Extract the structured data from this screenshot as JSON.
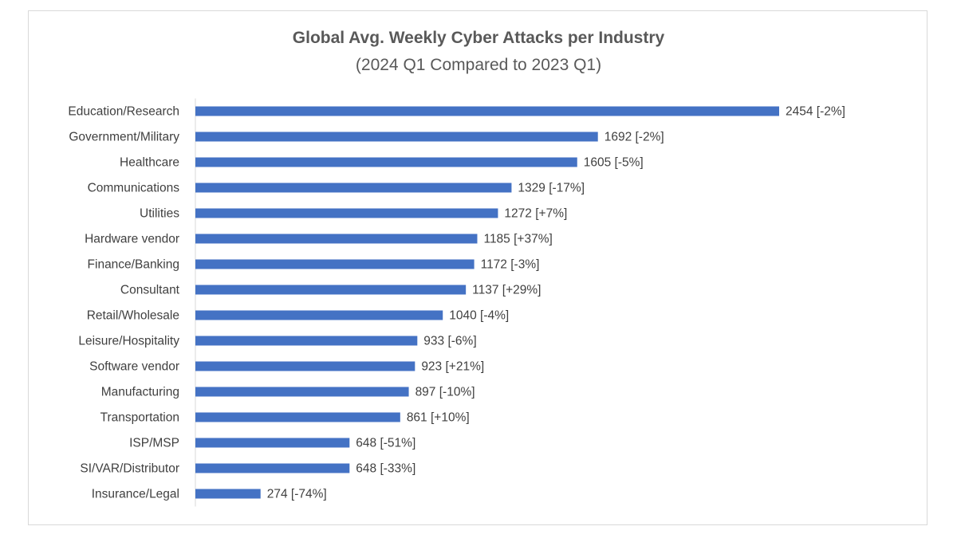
{
  "chart_data": {
    "type": "bar",
    "orientation": "horizontal",
    "title": "Global Avg. Weekly Cyber Attacks per Industry",
    "subtitle": "(2024 Q1 Compared to 2023 Q1)",
    "bar_color": "#4472c4",
    "categories": [
      "Education/Research",
      "Government/Military",
      "Healthcare",
      "Communications",
      "Utilities",
      "Hardware vendor",
      "Finance/Banking",
      "Consultant",
      "Retail/Wholesale",
      "Leisure/Hospitality",
      "Software vendor",
      "Manufacturing",
      "Transportation",
      "ISP/MSP",
      "SI/VAR/Distributor",
      "Insurance/Legal"
    ],
    "values": [
      2454,
      1692,
      1605,
      1329,
      1272,
      1185,
      1172,
      1137,
      1040,
      933,
      923,
      897,
      861,
      648,
      648,
      274
    ],
    "data_labels": [
      "2454 [-2%]",
      "1692 [-2%]",
      "1605 [-5%]",
      "1329 [-17%]",
      "1272 [+7%]",
      "1185 [+37%]",
      "1172 [-3%]",
      "1137 [+29%]",
      "1040 [-4%]",
      "933 [-6%]",
      "923 [+21%]",
      "897 [-10%]",
      "861 [+10%]",
      "648 [-51%]",
      "648 [-33%]",
      "274 [-74%]"
    ],
    "xlim": [
      0,
      2454
    ],
    "grid": false,
    "legend": false
  }
}
